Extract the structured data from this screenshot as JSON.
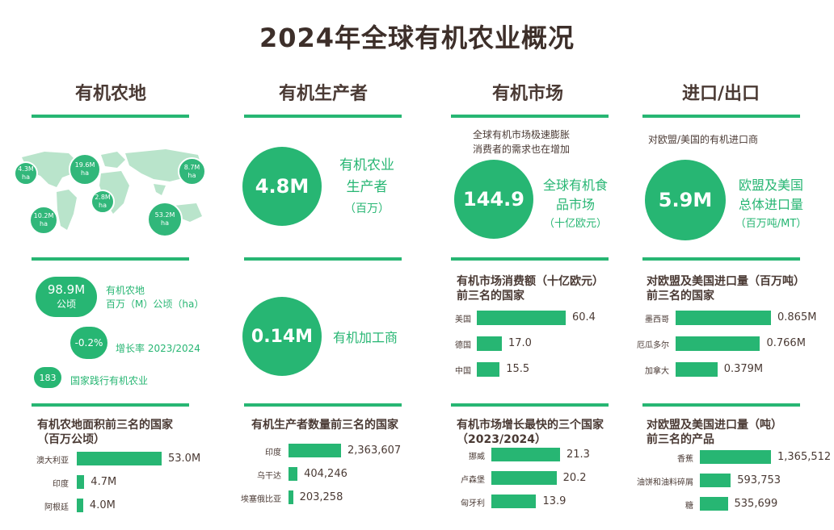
{
  "title": "2024年全球有机农业概况",
  "columns": {
    "land": "有机农地",
    "producers": "有机生产者",
    "market": "有机市场",
    "trade": "进口/出口"
  },
  "map_bubbles": [
    {
      "value": "4.3M",
      "unit": "ha"
    },
    {
      "value": "19.6M",
      "unit": "ha"
    },
    {
      "value": "8.7M",
      "unit": "ha"
    },
    {
      "value": "2.8M",
      "unit": "ha"
    },
    {
      "value": "10.2M",
      "unit": "ha"
    },
    {
      "value": "53.2M",
      "unit": "ha"
    }
  ],
  "producers": {
    "circle1": "4.8M",
    "label1a": "有机农业",
    "label1b": "生产者",
    "unit1": "（百万）",
    "circle2": "0.14M",
    "label2": "有机加工商"
  },
  "market": {
    "note1": "全球有机市场极速膨胀",
    "note2": "消费者的需求也在增加",
    "circle": "144.9",
    "label_a": "全球有机食",
    "label_b": "品市场",
    "unit": "（十亿欧元）"
  },
  "trade": {
    "note": "对欧盟/美国的有机进口商",
    "circle": "5.9M",
    "label_a": "欧盟及美国",
    "label_b": "总体进口量",
    "unit": "（百万吨/MT）"
  },
  "land_stats": {
    "circle1a": "98.9M",
    "circle1b": "公顷",
    "label1a": "有机农地",
    "label1b": "百万（M）公顷（ha）",
    "circle2": "-0.2%",
    "label2": "增长率 2023/2024",
    "circle3": "183",
    "label3": "国家践行有机农业"
  },
  "chart_data": [
    {
      "type": "bar",
      "title": "有机农地面积前三名的国家（百万公顷）",
      "categories": [
        "澳大利亚",
        "印度",
        "阿根廷"
      ],
      "values": [
        53.0,
        4.7,
        4.0
      ],
      "value_labels": [
        "53.0M",
        "4.7M",
        "4.0M"
      ]
    },
    {
      "type": "bar",
      "title": "有机生产者数量前三名的国家",
      "categories": [
        "印度",
        "乌干达",
        "埃塞俄比亚"
      ],
      "values": [
        2363607,
        404246,
        203258
      ],
      "value_labels": [
        "2,363,607",
        "404,246",
        "203,258"
      ]
    },
    {
      "type": "bar",
      "title": "有机市场消费额（十亿欧元）前三名的国家",
      "categories": [
        "美国",
        "德国",
        "中国"
      ],
      "values": [
        60.4,
        17.0,
        15.5
      ],
      "value_labels": [
        "60.4",
        "17.0",
        "15.5"
      ]
    },
    {
      "type": "bar",
      "title": "对欧盟及美国进口量（百万吨）前三名的国家",
      "categories": [
        "墨西哥",
        "厄瓜多尔",
        "加拿大"
      ],
      "values": [
        0.865,
        0.766,
        0.379
      ],
      "value_labels": [
        "0.865M",
        "0.766M",
        "0.379M"
      ]
    },
    {
      "type": "bar",
      "title": "有机市场增长最快的三个国家（2023/2024）",
      "categories": [
        "挪威",
        "卢森堡",
        "匈牙利"
      ],
      "values": [
        21.3,
        20.2,
        13.9
      ],
      "value_labels": [
        "21.3",
        "20.2",
        "13.9"
      ]
    },
    {
      "type": "bar",
      "title": "对欧盟及美国进口量（吨）前三名的产品",
      "categories": [
        "香蕉",
        "油饼和油料碎屑",
        "糖"
      ],
      "values": [
        1365512,
        593753,
        535699
      ],
      "value_labels": [
        "1,365,512",
        "593,753",
        "535,699"
      ]
    }
  ],
  "chart_titles": {
    "c0a": "有机农地面积前三名的国家",
    "c0b": "（百万公顷）",
    "c1a": "有机生产者数量前三名的国家",
    "c2a": "有机市场消费额（十亿欧元）",
    "c2b": "前三名的国家",
    "c3a": "对欧盟及美国进口量（百万吨）",
    "c3b": "前三名的国家",
    "c4a": "有机市场增长最快的三个国家",
    "c4b": "（2023/2024）",
    "c5a": "对欧盟及美国进口量（吨）",
    "c5b": "前三名的产品"
  }
}
